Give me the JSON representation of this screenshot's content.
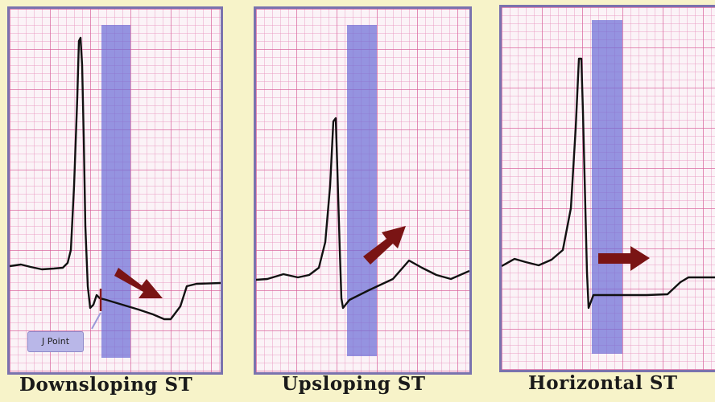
{
  "panels": [
    {
      "caption": "Downsloping ST",
      "label": "J Point"
    },
    {
      "caption": "Upsloping ST"
    },
    {
      "caption": "Horizontal ST"
    }
  ],
  "colors": {
    "background": "#f7f3c9",
    "panel_border": "#7a72ae",
    "grid": "#d65a96",
    "highlight_band": "#6e6ed7",
    "arrow": "#7a1414",
    "trace": "#111111"
  }
}
